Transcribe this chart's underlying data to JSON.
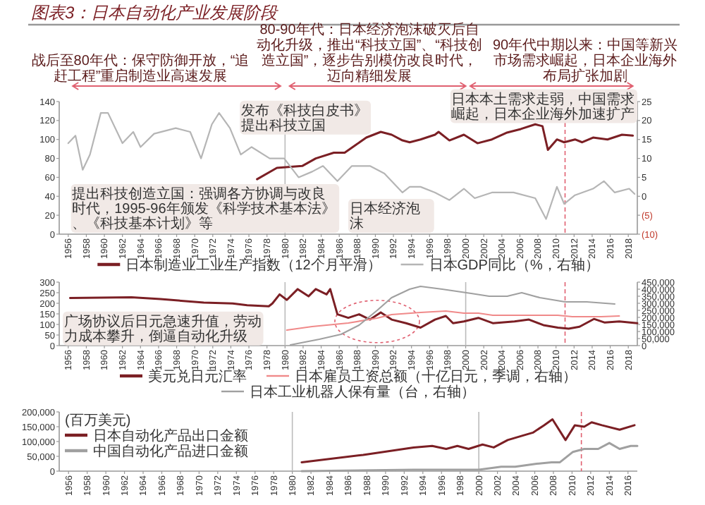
{
  "chart_data": [
    {
      "type": "line",
      "title": "图表3：日本自动化产业发展阶段",
      "annotations": [
        "战后至80年代：保守防御开放，“追赶工程”重启制造业高速发展",
        "80-90年代：日本经济泡沫破灭后自动化升级，推出“科技立国”、“科技创造立国”，逐步告别模仿改良时代，迈向精细发展",
        "90年代中期以来：中国等新兴市场需求崛起，日本企业海外布局扩张加剧",
        "提出科技创造立国：强调各方协调与改良时代，1995-96年颁发《科学技术基本法》、《科技基本计划》等",
        "发布《科技白皮书》提出科技立国",
        "日本经济泡沫",
        "日本本土需求走弱，中国需求崛起，日本企业海外加速扩产"
      ],
      "ref_lines": [
        {
          "axis": "x",
          "value": 1980,
          "color": "#bbbbbb",
          "line_style": "solid"
        },
        {
          "axis": "x",
          "value": 2011,
          "color": "#e06070",
          "line_style": "dashed"
        }
      ],
      "xlim": [
        1955,
        2019
      ],
      "xticks": [
        1956,
        1958,
        1960,
        1962,
        1964,
        1966,
        1968,
        1970,
        1972,
        1974,
        1976,
        1978,
        1980,
        1982,
        1984,
        1986,
        1988,
        1990,
        1992,
        1994,
        1996,
        1998,
        2000,
        2002,
        2004,
        2006,
        2008,
        2010,
        2012,
        2014,
        2016,
        2018
      ],
      "ylim": [
        0,
        140
      ],
      "yticks": [
        0,
        20,
        40,
        60,
        80,
        100,
        120,
        140
      ],
      "y2lim": [
        -10,
        25
      ],
      "y2ticks": [
        {
          "value": -10,
          "label": "(10)"
        },
        {
          "value": -5,
          "label": "(5)"
        },
        0,
        5,
        10,
        15,
        20,
        25
      ],
      "legend": "bottom",
      "series": [
        {
          "name": "日本制造业工业生产指数（12个月平滑）",
          "color": "#7b1f24",
          "x": [
            1976.9,
            1979.1,
            1981.9,
            1983.4,
            1985.4,
            1986.6,
            1987.8,
            1989,
            1990.6,
            1991.8,
            1993,
            1993.8,
            1995,
            1996.6,
            1997,
            1998.2,
            1999.8,
            2001.3,
            2002.9,
            2004.5,
            2006.1,
            2007.7,
            2008.5,
            2009.1,
            2010.1,
            2010.9,
            2012.1,
            2012.9,
            2014.1,
            2015.7,
            2017.3,
            2018.5
          ],
          "values": [
            58,
            70,
            72,
            80,
            86,
            86,
            94,
            102,
            108,
            105,
            99,
            97,
            100,
            105,
            108,
            99,
            105,
            96,
            100,
            107,
            111,
            116,
            114,
            89,
            100,
            97,
            100,
            97,
            102,
            100,
            105,
            104
          ]
        },
        {
          "name": "日本GDP同比（%，右轴）",
          "color": "#b5b5b5",
          "axis": "y2",
          "x": [
            1956,
            1956.8,
            1957.6,
            1958.4,
            1959.6,
            1960.4,
            1962,
            1963.2,
            1964,
            1965.5,
            1967.9,
            1969.5,
            1970.7,
            1971.9,
            1972.7,
            1973.9,
            1975.1,
            1976.3,
            1978.3,
            1979.9,
            1981.5,
            1983,
            1984.2,
            1985.8,
            1987.4,
            1989.4,
            1991,
            1993,
            1993.8,
            1995,
            1996.6,
            1998.2,
            1999.8,
            2001,
            2002.9,
            2005.3,
            2007.7,
            2008.9,
            2010.1,
            2010.9,
            2012.1,
            2014.1,
            2015.3,
            2016.5,
            2018.1,
            2018.7
          ],
          "values": [
            14,
            16,
            7,
            11,
            22,
            22,
            14,
            17,
            13,
            16.5,
            18,
            17,
            10,
            19,
            22,
            18,
            11,
            13,
            10,
            10,
            5,
            6.5,
            8,
            4,
            8,
            8,
            6,
            1,
            2.5,
            2.5,
            1,
            -1,
            2,
            -0.5,
            1,
            1,
            -0.5,
            -6,
            2.5,
            -2,
            0.3,
            2,
            4,
            1,
            2,
            0.6
          ]
        }
      ]
    },
    {
      "type": "line",
      "annotations": [
        "广场协议后日元急速升值，劳动力成本攀升，倒逼自动化升级"
      ],
      "ref_lines": [
        {
          "axis": "x",
          "value": 1980,
          "color": "#bbbbbb",
          "line_style": "solid"
        },
        {
          "axis": "x",
          "value": 2000,
          "color": "#bbbbbb",
          "line_style": "solid"
        },
        {
          "axis": "x",
          "value": 2011,
          "color": "#e06070",
          "line_style": "dashed"
        }
      ],
      "xlim": [
        1955,
        2019
      ],
      "xticks": [
        1956,
        1958,
        1960,
        1962,
        1964,
        1966,
        1968,
        1970,
        1972,
        1974,
        1976,
        1978,
        1980,
        1982,
        1984,
        1986,
        1988,
        1990,
        1992,
        1994,
        1996,
        1998,
        2000,
        2002,
        2004,
        2006,
        2008,
        2010,
        2012,
        2014,
        2016,
        2018
      ],
      "ylim": [
        0,
        300
      ],
      "yticks": [
        0,
        50,
        100,
        150,
        200,
        250,
        300
      ],
      "y2lim": [
        0,
        450000
      ],
      "y2ticks": [
        0,
        {
          "value": 50000,
          "label": "50,000"
        },
        {
          "value": 100000,
          "label": "100,000"
        },
        {
          "value": 150000,
          "label": "150,000"
        },
        {
          "value": 200000,
          "label": "200,000"
        },
        {
          "value": 250000,
          "label": "250,000"
        },
        {
          "value": 300000,
          "label": "300,000"
        },
        {
          "value": 350000,
          "label": "350,000"
        },
        {
          "value": 400000,
          "label": "400,000"
        },
        {
          "value": 450000,
          "label": "450,000"
        }
      ],
      "legend": "bottom",
      "series": [
        {
          "name": "美元兑日元汇率",
          "color": "#7b1f24",
          "x": [
            1956.2,
            1963,
            1966.2,
            1971,
            1974.2,
            1975.8,
            1978.2,
            1978.6,
            1979.4,
            1980.2,
            1981.4,
            1982.6,
            1983.4,
            1984.6,
            1985,
            1985.8,
            1987,
            1988.2,
            1989.4,
            1990.6,
            1991.8,
            1993.4,
            1995,
            1996.6,
            1997.8,
            1998.6,
            1999.8,
            2001.4,
            2003,
            2005.4,
            2007,
            2008.6,
            2010.2,
            2011.4,
            2012.6,
            2014.2,
            2015.4,
            2017,
            2019
          ],
          "values": [
            225,
            228,
            220,
            203,
            199,
            191,
            186,
            199,
            242,
            216,
            267,
            233,
            267,
            242,
            267,
            148,
            131,
            148,
            123,
            157,
            123,
            106,
            85,
            123,
            140,
            106,
            114,
            131,
            106,
            114,
            123,
            97,
            85,
            80,
            89,
            126,
            109,
            114,
            106
          ]
        },
        {
          "name": "日本雇员工资总额（十亿日元，季调，右轴）",
          "color": "#f08a8a",
          "axis": "y2",
          "x": [
            1980.2,
            1983,
            1987,
            1990.2,
            1991.8,
            1995,
            1997.8,
            1999.8,
            2001.4,
            2003,
            2007,
            2010.2,
            2011.8,
            2015,
            2017
          ],
          "values": [
            110000,
            135000,
            160000,
            195000,
            220000,
            235000,
            245000,
            230000,
            230000,
            215000,
            215000,
            215000,
            205000,
            205000,
            210000
          ]
        },
        {
          "name": "日本工业机器人保有量（台，右轴）",
          "color": "#a0a0a0",
          "axis": "y2",
          "x": [
            1980.6,
            1983.8,
            1986.2,
            1988.2,
            1990.2,
            1991.8,
            1993.8,
            1995,
            1997.4,
            2000.6,
            2002.6,
            2004.6,
            2006.2,
            2008.2,
            2011,
            2013.4,
            2016.5
          ],
          "values": [
            5000,
            45000,
            80000,
            145000,
            250000,
            340000,
            400000,
            420000,
            400000,
            370000,
            350000,
            350000,
            375000,
            340000,
            310000,
            310000,
            295000
          ]
        }
      ]
    },
    {
      "type": "line",
      "ylabel": "(百万美元)",
      "ref_lines": [
        {
          "axis": "x",
          "value": 1980,
          "color": "#bbbbbb",
          "line_style": "solid"
        },
        {
          "axis": "x",
          "value": 2000,
          "color": "#bbbbbb",
          "line_style": "solid"
        },
        {
          "axis": "x",
          "value": 2011,
          "color": "#e06070",
          "line_style": "dashed"
        }
      ],
      "xlim": [
        1955,
        2017
      ],
      "xticks": [
        1956,
        1958,
        1960,
        1962,
        1964,
        1966,
        1968,
        1970,
        1972,
        1974,
        1976,
        1978,
        1980,
        1982,
        1984,
        1986,
        1988,
        1990,
        1992,
        1994,
        1996,
        1998,
        2000,
        2002,
        2004,
        2006,
        2008,
        2010,
        2012,
        2014,
        2016
      ],
      "ylim": [
        0,
        200000
      ],
      "yticks": [
        0,
        {
          "value": 50000,
          "label": "50,000"
        },
        {
          "value": 100000,
          "label": "100,000"
        },
        {
          "value": 150000,
          "label": "150,000"
        },
        {
          "value": 200000,
          "label": "200,000"
        }
      ],
      "legend": "left",
      "series": [
        {
          "name": "日本自动化产品出口金额",
          "color": "#7b1f24",
          "x": [
            1981,
            1987.6,
            1993,
            1995,
            1996.5,
            1997.7,
            1998.9,
            2000.4,
            2001.6,
            2003.1,
            2004.7,
            2005.8,
            2007,
            2007.9,
            2009.3,
            2010.3,
            2011.3,
            2012.1,
            2013.2,
            2015.1,
            2016.7
          ],
          "values": [
            30000,
            55000,
            80000,
            85000,
            75000,
            85000,
            75000,
            90000,
            80000,
            105000,
            120000,
            130000,
            155000,
            175000,
            105000,
            155000,
            150000,
            165000,
            155000,
            140000,
            155000
          ]
        },
        {
          "name": "中国自动化产品进口金额",
          "color": "#a0a0a0",
          "x": [
            1981,
            1993,
            1995.4,
            2000,
            2002.4,
            2003.9,
            2006.2,
            2007.8,
            2008.7,
            2010.1,
            2011.3,
            2012.8,
            2014,
            2015.1,
            2016.3,
            2017
          ],
          "values": [
            0,
            5000,
            5000,
            5000,
            15000,
            15000,
            25000,
            30000,
            30000,
            65000,
            75000,
            75000,
            95000,
            75000,
            85000,
            85000
          ]
        }
      ]
    }
  ]
}
